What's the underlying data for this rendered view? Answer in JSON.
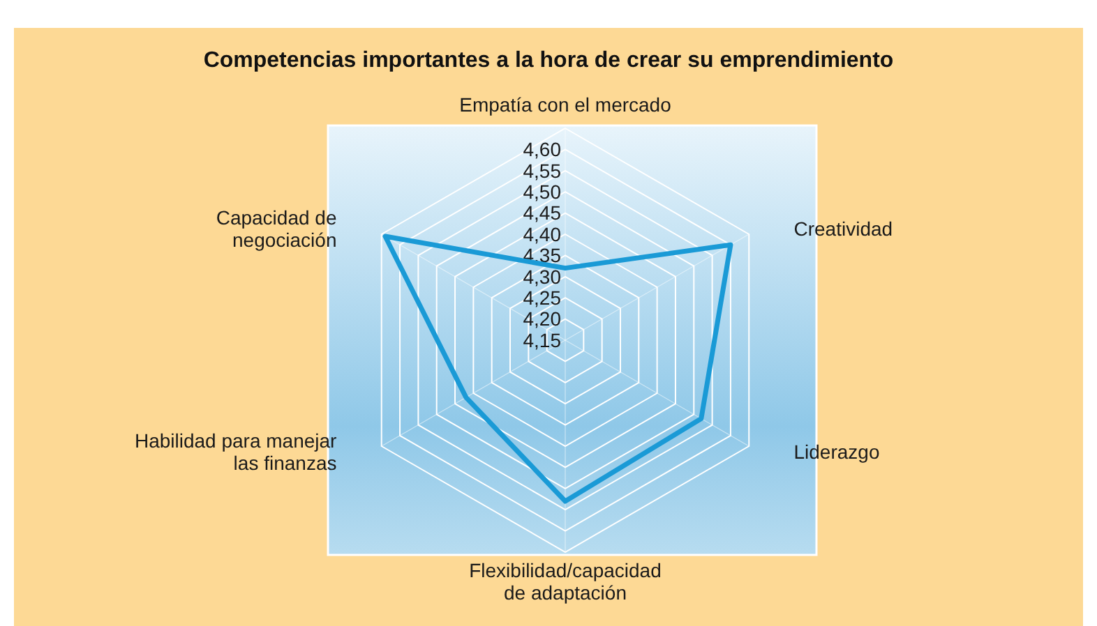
{
  "chart_data": {
    "type": "radar",
    "title": "Competencias importantes a la hora de crear su emprendimiento",
    "categories": [
      "Empatía con el mercado",
      "Creatividad",
      "Liderazgo",
      "Flexibilidad/capacidad\nde adaptación",
      "Habilidad para manejar\nlas finanzas",
      "Capacidad de\nnegociación"
    ],
    "series": [
      {
        "color": "#1a9ad6",
        "values": [
          4.32,
          4.6,
          4.52,
          4.53,
          4.42,
          4.64
        ]
      }
    ],
    "ylim": [
      4.15,
      4.65
    ],
    "yticks": [
      {
        "value": 4.15,
        "label": "4,15"
      },
      {
        "value": 4.2,
        "label": "4,20"
      },
      {
        "value": 4.25,
        "label": "4,25"
      },
      {
        "value": 4.3,
        "label": "4,30"
      },
      {
        "value": 4.35,
        "label": "4,35"
      },
      {
        "value": 4.4,
        "label": "4,40"
      },
      {
        "value": 4.45,
        "label": "4,45"
      },
      {
        "value": 4.5,
        "label": "4,50"
      },
      {
        "value": 4.55,
        "label": "4,55"
      },
      {
        "value": 4.6,
        "label": "4,60"
      }
    ],
    "grid": true
  }
}
